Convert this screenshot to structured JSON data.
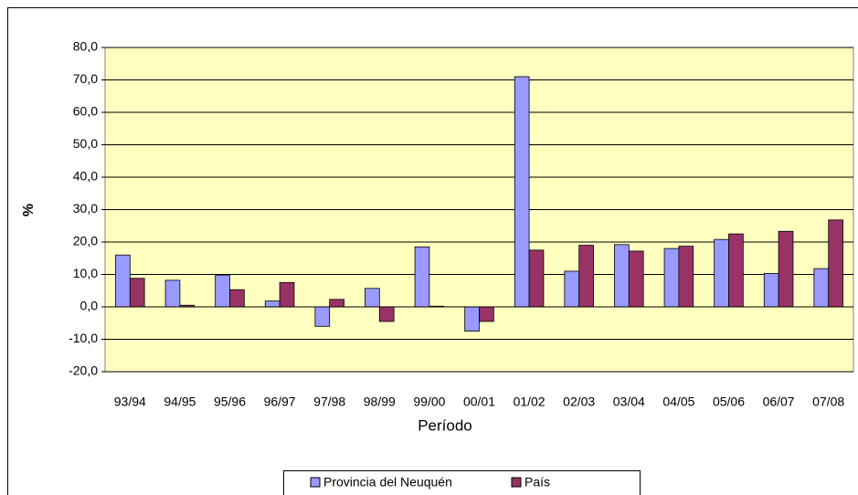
{
  "chart_data": {
    "type": "bar",
    "categories": [
      "93/94",
      "94/95",
      "95/96",
      "96/97",
      "97/98",
      "98/99",
      "99/00",
      "00/01",
      "01/02",
      "02/03",
      "03/04",
      "04/05",
      "05/06",
      "06/07",
      "07/08"
    ],
    "series": [
      {
        "name": "Provincia del Neuquén",
        "color": "#9999ff",
        "values": [
          16.0,
          8.2,
          9.8,
          1.8,
          -6.0,
          5.7,
          18.5,
          -7.5,
          71.0,
          11.0,
          19.2,
          18.0,
          20.8,
          10.3,
          11.8
        ]
      },
      {
        "name": "País",
        "color": "#993366",
        "values": [
          8.8,
          0.5,
          5.3,
          7.5,
          2.3,
          -4.5,
          0.2,
          -4.5,
          17.5,
          19.0,
          17.2,
          18.7,
          22.5,
          23.3,
          26.8
        ]
      }
    ],
    "ylim": [
      -20,
      80
    ],
    "yticks": [
      {
        "value": -20,
        "label": "-20,0"
      },
      {
        "value": -10,
        "label": "-10,0"
      },
      {
        "value": 0,
        "label": "0,0"
      },
      {
        "value": 10,
        "label": "10,0"
      },
      {
        "value": 20,
        "label": "20,0"
      },
      {
        "value": 30,
        "label": "30,0"
      },
      {
        "value": 40,
        "label": "40,0"
      },
      {
        "value": 50,
        "label": "50,0"
      },
      {
        "value": 60,
        "label": "60,0"
      },
      {
        "value": 70,
        "label": "70,0"
      },
      {
        "value": 80,
        "label": "80,0"
      }
    ],
    "xlabel": "Período",
    "ylabel": "%",
    "grid": true,
    "legend": "bottom"
  }
}
